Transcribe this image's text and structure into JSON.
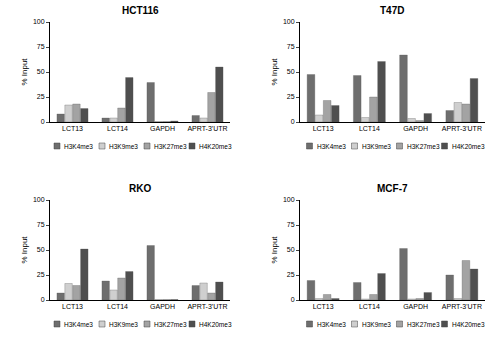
{
  "chart_data": [
    {
      "type": "bar",
      "title": "HCT116",
      "y_label": "% Input",
      "categories": [
        "LCT13",
        "LCT14",
        "GAPDH",
        "APRT-3'UTR"
      ],
      "series": [
        {
          "name": "H3K4me3",
          "color": "#6e6e6e",
          "values": [
            8,
            4,
            39.5,
            6.5
          ]
        },
        {
          "name": "H3K9me3",
          "color": "#cfcfcf",
          "values": [
            17,
            4,
            0.5,
            4
          ]
        },
        {
          "name": "H3K27me3",
          "color": "#a3a3a3",
          "values": [
            18,
            14,
            0.5,
            29.5
          ]
        },
        {
          "name": "H4K20me3",
          "color": "#4f4f4f",
          "values": [
            13.5,
            44.5,
            1,
            55
          ]
        }
      ],
      "ylim": [
        0,
        100
      ],
      "yticks": [
        0,
        25,
        50,
        75,
        100
      ],
      "grid": false
    },
    {
      "type": "bar",
      "title": "T47D",
      "y_label": "% Input",
      "categories": [
        "LCT13",
        "LCT14",
        "GAPDH",
        "APRT-3'UTR"
      ],
      "series": [
        {
          "name": "H3K4me3",
          "color": "#6e6e6e",
          "values": [
            47.5,
            46.5,
            67,
            11.5
          ]
        },
        {
          "name": "H3K9me3",
          "color": "#cfcfcf",
          "values": [
            7,
            4.5,
            3.5,
            19.5
          ]
        },
        {
          "name": "H3K27me3",
          "color": "#a3a3a3",
          "values": [
            21.5,
            25,
            1.5,
            18
          ]
        },
        {
          "name": "H4K20me3",
          "color": "#4f4f4f",
          "values": [
            16.5,
            60.5,
            8.5,
            43.5
          ]
        }
      ],
      "ylim": [
        0,
        100
      ],
      "yticks": [
        0,
        25,
        50,
        75,
        100
      ],
      "grid": false
    },
    {
      "type": "bar",
      "title": "RKO",
      "y_label": "% Input",
      "categories": [
        "LCT13",
        "LCT14",
        "GAPDH",
        "APRT-3'UTR"
      ],
      "series": [
        {
          "name": "H3K4me3",
          "color": "#6e6e6e",
          "values": [
            7,
            19,
            54.5,
            14.5
          ]
        },
        {
          "name": "H3K9me3",
          "color": "#cfcfcf",
          "values": [
            16.5,
            10,
            0.5,
            17
          ]
        },
        {
          "name": "H3K27me3",
          "color": "#a3a3a3",
          "values": [
            14.5,
            22,
            0.5,
            7
          ]
        },
        {
          "name": "H4K20me3",
          "color": "#4f4f4f",
          "values": [
            51,
            28.5,
            0.5,
            18
          ]
        }
      ],
      "ylim": [
        0,
        100
      ],
      "yticks": [
        0,
        25,
        50,
        75,
        100
      ],
      "grid": false
    },
    {
      "type": "bar",
      "title": "MCF-7",
      "y_label": "% Input",
      "categories": [
        "LCT13",
        "LCT14",
        "GAPDH",
        "APRT-3'UTR"
      ],
      "series": [
        {
          "name": "H3K4me3",
          "color": "#6e6e6e",
          "values": [
            19.5,
            17.5,
            51.5,
            25
          ]
        },
        {
          "name": "H3K9me3",
          "color": "#cfcfcf",
          "values": [
            1.5,
            1,
            1,
            1.5
          ]
        },
        {
          "name": "H3K27me3",
          "color": "#a3a3a3",
          "values": [
            5.5,
            5.5,
            1.5,
            39.5
          ]
        },
        {
          "name": "H4K20me3",
          "color": "#4f4f4f",
          "values": [
            1.5,
            26.5,
            7.5,
            31
          ]
        }
      ],
      "ylim": [
        0,
        100
      ],
      "yticks": [
        0,
        25,
        50,
        75,
        100
      ],
      "grid": false
    }
  ]
}
